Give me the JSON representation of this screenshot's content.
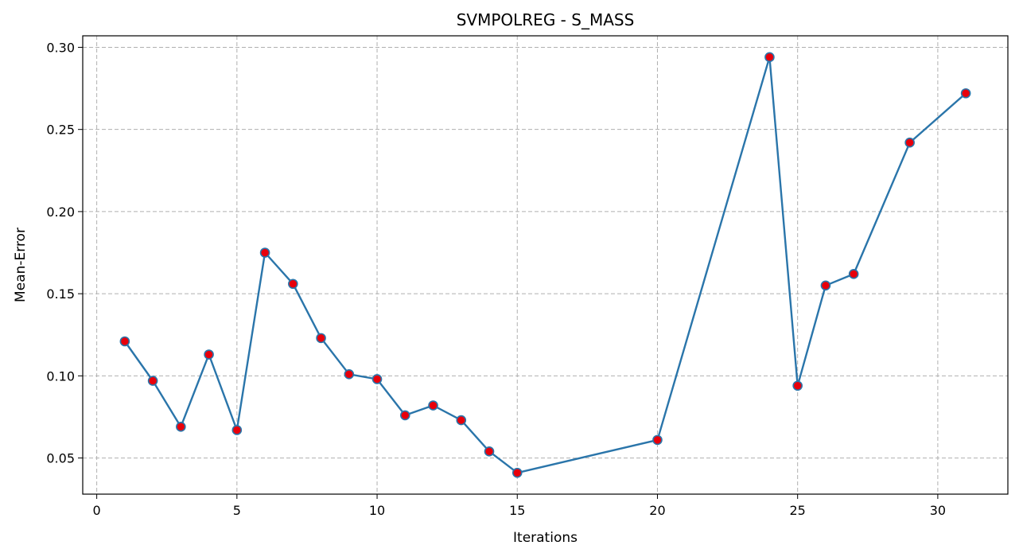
{
  "chart_data": {
    "type": "line",
    "title": "SVMPOLREG - S_MASS",
    "xlabel": "Iterations",
    "ylabel": "Mean-Error",
    "xlim": [
      -0.5,
      32.5
    ],
    "ylim": [
      0.028,
      0.307
    ],
    "xticks": [
      0,
      5,
      10,
      15,
      20,
      25,
      30
    ],
    "xtick_labels": [
      "0",
      "5",
      "10",
      "15",
      "20",
      "25",
      "30"
    ],
    "yticks": [
      0.05,
      0.1,
      0.15,
      0.2,
      0.25,
      0.3
    ],
    "ytick_labels": [
      "0.05",
      "0.10",
      "0.15",
      "0.20",
      "0.25",
      "0.30"
    ],
    "grid": true,
    "grid_style": "dashed",
    "line_color": "#2a75aa",
    "marker_color": "#e8000b",
    "marker_edge_color": "#2a75aa",
    "series": [
      {
        "x": [
          1,
          2,
          3,
          4,
          5,
          6,
          7,
          8,
          9,
          10,
          11,
          12,
          13,
          14,
          15,
          20,
          24,
          25,
          26,
          27,
          29,
          31
        ],
        "y": [
          0.121,
          0.097,
          0.069,
          0.113,
          0.067,
          0.175,
          0.156,
          0.123,
          0.101,
          0.098,
          0.076,
          0.082,
          0.073,
          0.054,
          0.041,
          0.061,
          0.294,
          0.094,
          0.155,
          0.162,
          0.242,
          0.272
        ]
      }
    ]
  }
}
